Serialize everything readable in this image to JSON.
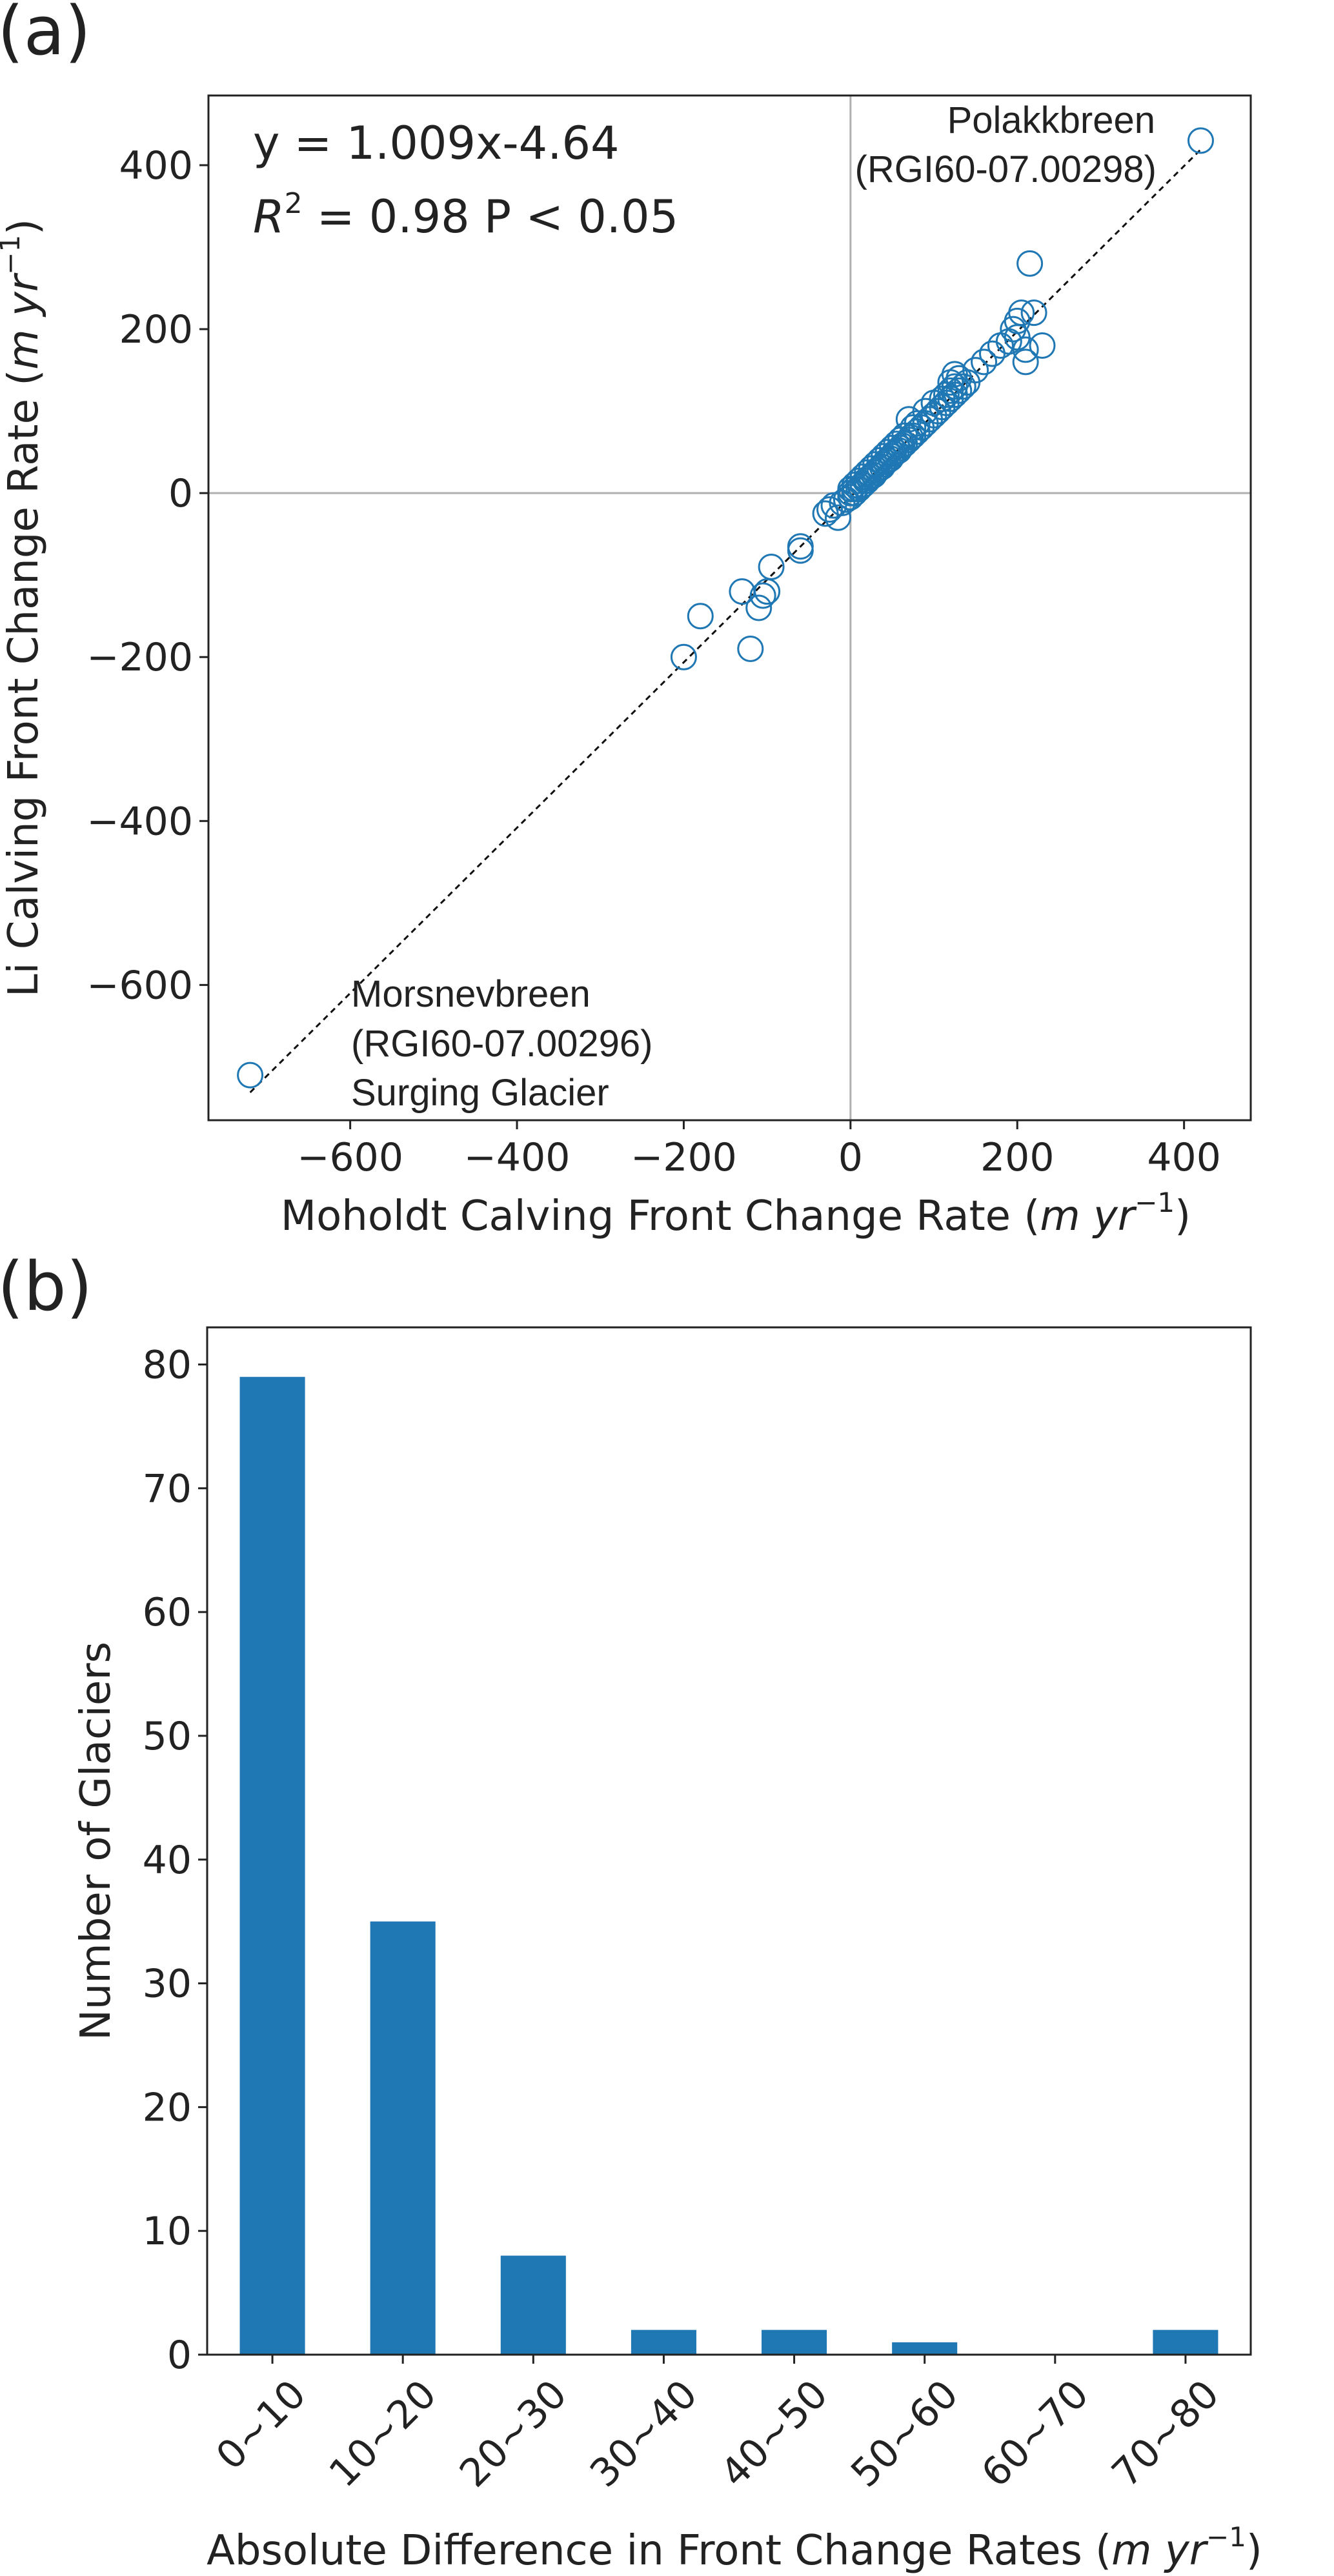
{
  "chart_data": [
    {
      "type": "scatter",
      "panel_label": "(a)",
      "xlabel": "Moholdt Calving Front Change Rate (m yr⁻¹)",
      "ylabel": "Li Calving Front Change Rate (m yr⁻¹)",
      "xlim": [
        -770,
        480
      ],
      "ylim": [
        -765,
        485
      ],
      "xticks": [
        -600,
        -400,
        -200,
        0,
        200,
        400
      ],
      "yticks": [
        -600,
        -400,
        -200,
        0,
        200,
        400
      ],
      "xtick_labels": [
        "−600",
        "−400",
        "−200",
        "0",
        "200",
        "400"
      ],
      "ytick_labels": [
        "−600",
        "−400",
        "−200",
        "0",
        "200",
        "400"
      ],
      "grid": false,
      "reference_lines": {
        "x": 0,
        "y": 0
      },
      "fit": {
        "slope": 1.009,
        "intercept": -4.64
      },
      "equation_text": "y = 1.009x-4.64",
      "r2_symbol": "R",
      "r2_sup": "2",
      "r2_text": " = 0.98 P < 0.05",
      "marker": "open-circle",
      "color": "#1f77b4",
      "annotations": [
        {
          "lines": [
            "Polakkbreen",
            "(RGI60-07.00298)"
          ]
        },
        {
          "lines": [
            "Morsnevbreen",
            "(RGI60-07.00296)",
            "Surging Glacier"
          ]
        }
      ],
      "series": [
        {
          "x": [
            -720,
            -200,
            -180,
            -130,
            -120,
            -110,
            -105,
            -100,
            -95,
            -60,
            -60,
            -30,
            -25,
            -20,
            -15,
            -10,
            -5,
            0,
            0,
            0,
            5,
            5,
            5,
            10,
            10,
            12,
            15,
            15,
            18,
            20,
            20,
            22,
            25,
            25,
            28,
            30,
            30,
            32,
            35,
            35,
            38,
            40,
            40,
            42,
            45,
            45,
            48,
            50,
            50,
            52,
            55,
            55,
            58,
            60,
            60,
            62,
            65,
            65,
            70,
            70,
            72,
            75,
            75,
            80,
            80,
            85,
            90,
            90,
            95,
            100,
            100,
            105,
            110,
            110,
            115,
            115,
            120,
            120,
            120,
            125,
            125,
            125,
            130,
            130,
            135,
            140,
            150,
            160,
            170,
            180,
            190,
            195,
            200,
            200,
            205,
            210,
            210,
            215,
            220,
            230,
            420
          ],
          "y": [
            -710,
            -200,
            -150,
            -120,
            -190,
            -140,
            -125,
            -120,
            -90,
            -70,
            -65,
            -25,
            -20,
            -15,
            -30,
            -12,
            -8,
            -5,
            5,
            0,
            0,
            10,
            5,
            5,
            15,
            8,
            10,
            20,
            15,
            15,
            25,
            18,
            20,
            30,
            22,
            25,
            35,
            28,
            30,
            40,
            32,
            35,
            45,
            38,
            40,
            50,
            42,
            45,
            55,
            48,
            50,
            60,
            52,
            55,
            65,
            58,
            60,
            70,
            65,
            90,
            68,
            70,
            80,
            75,
            85,
            80,
            85,
            100,
            90,
            95,
            110,
            100,
            105,
            115,
            110,
            120,
            115,
            125,
            135,
            120,
            130,
            145,
            125,
            140,
            130,
            135,
            150,
            160,
            170,
            180,
            185,
            200,
            190,
            210,
            220,
            160,
            175,
            280,
            220,
            180,
            430
          ]
        }
      ]
    },
    {
      "type": "bar",
      "panel_label": "(b)",
      "xlabel": "Absolute Difference in Front Change Rates (m yr⁻¹)",
      "ylabel": "Number of Glaciers",
      "categories": [
        "0~10",
        "10~20",
        "20~30",
        "30~40",
        "40~50",
        "50~60",
        "60~70",
        "70~80"
      ],
      "values": [
        79,
        35,
        8,
        2,
        2,
        1,
        0,
        2
      ],
      "ylim": [
        0,
        83
      ],
      "yticks": [
        0,
        10,
        20,
        30,
        40,
        50,
        60,
        70,
        80
      ],
      "grid": false,
      "color": "#1f77b4"
    }
  ]
}
